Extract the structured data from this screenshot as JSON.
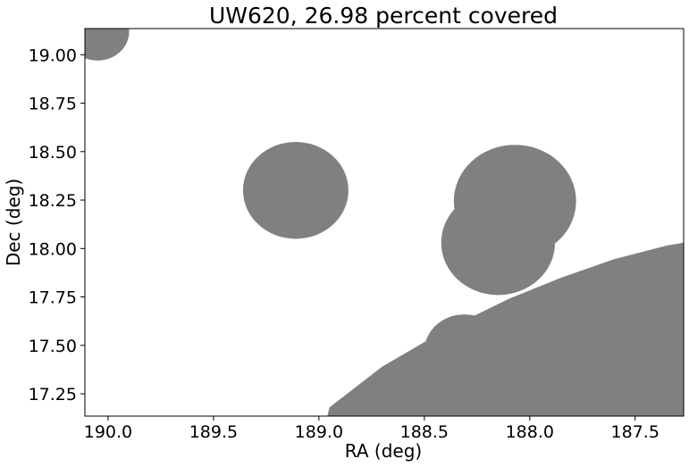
{
  "chart_data": {
    "type": "scatter",
    "title": "UW620, 26.98 percent covered",
    "xlabel": "RA (deg)",
    "ylabel": "Dec (deg)",
    "xlim": [
      190.11,
      187.27
    ],
    "ylim": [
      17.135,
      19.135
    ],
    "x_inverted": true,
    "grid": false,
    "fill_color": "#808080",
    "background": "#ffffff",
    "x_ticks": [
      190.0,
      189.5,
      189.0,
      188.5,
      188.0,
      187.5
    ],
    "x_tick_labels": [
      "190.0",
      "189.5",
      "189.0",
      "188.5",
      "188.0",
      "187.5"
    ],
    "y_ticks": [
      17.25,
      17.5,
      17.75,
      18.0,
      18.25,
      18.5,
      18.75,
      19.0
    ],
    "y_tick_labels": [
      "17.25",
      "17.50",
      "17.75",
      "18.00",
      "18.25",
      "18.50",
      "18.75",
      "19.00"
    ],
    "covered_regions": [
      {
        "shape": "circle",
        "ra": 190.05,
        "dec": 19.12,
        "radius_deg": 0.15
      },
      {
        "shape": "circle",
        "ra": 189.11,
        "dec": 18.3,
        "radius_deg": 0.25
      },
      {
        "shape": "circle",
        "ra": 188.07,
        "dec": 18.245,
        "radius_deg": 0.29
      },
      {
        "shape": "circle",
        "ra": 188.15,
        "dec": 18.03,
        "radius_deg": 0.27
      },
      {
        "shape": "circle",
        "ra": 188.31,
        "dec": 17.47,
        "radius_deg": 0.19
      },
      {
        "shape": "polygon",
        "points": [
          [
            188.96,
            17.135
          ],
          [
            188.95,
            17.18
          ],
          [
            188.7,
            17.39
          ],
          [
            188.4,
            17.58
          ],
          [
            188.1,
            17.74
          ],
          [
            187.85,
            17.85
          ],
          [
            187.6,
            17.945
          ],
          [
            187.35,
            18.015
          ],
          [
            187.27,
            18.03
          ],
          [
            187.27,
            17.135
          ]
        ]
      }
    ]
  }
}
